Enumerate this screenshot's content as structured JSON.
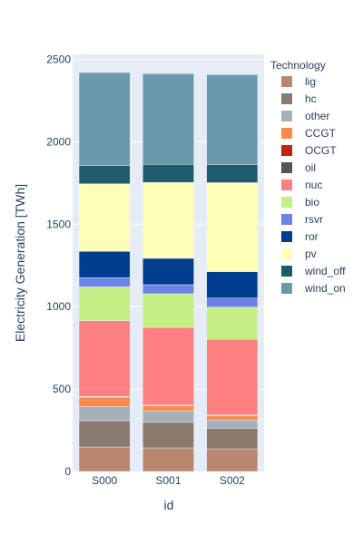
{
  "chart_data": {
    "type": "bar",
    "stacked": true,
    "categories": [
      "S000",
      "S001",
      "S002"
    ],
    "xlabel": "id",
    "ylabel": "Electricity Generation [TWh]",
    "ylim": [
      0,
      2530
    ],
    "yticks": [
      0,
      500,
      1000,
      1500,
      2000,
      2500
    ],
    "grid": true,
    "legend_title": "Technology",
    "legend_position": "right",
    "series": [
      {
        "name": "lig",
        "color": "#b9866f",
        "values": [
          148,
          143,
          137
        ]
      },
      {
        "name": "hc",
        "color": "#8b7b6e",
        "values": [
          160,
          155,
          125
        ]
      },
      {
        "name": "other",
        "color": "#a5b1b8",
        "values": [
          85,
          70,
          50
        ]
      },
      {
        "name": "CCGT",
        "color": "#fb8a4b",
        "values": [
          57,
          30,
          25
        ]
      },
      {
        "name": "OCGT",
        "color": "#c62205",
        "values": [
          2,
          2,
          2
        ]
      },
      {
        "name": "oil",
        "color": "#555555",
        "values": [
          3,
          3,
          3
        ]
      },
      {
        "name": "nuc",
        "color": "#ff8080",
        "values": [
          460,
          470,
          460
        ]
      },
      {
        "name": "bio",
        "color": "#c4ef85",
        "values": [
          205,
          205,
          195
        ]
      },
      {
        "name": "rsvr",
        "color": "#6c82e6",
        "values": [
          55,
          55,
          55
        ]
      },
      {
        "name": "ror",
        "color": "#013e90",
        "values": [
          160,
          160,
          160
        ]
      },
      {
        "name": "pv",
        "color": "#ffffb8",
        "values": [
          410,
          460,
          540
        ]
      },
      {
        "name": "wind_off",
        "color": "#1f5c6b",
        "values": [
          110,
          110,
          110
        ]
      },
      {
        "name": "wind_on",
        "color": "#6999aa",
        "values": [
          565,
          550,
          545
        ]
      }
    ]
  }
}
